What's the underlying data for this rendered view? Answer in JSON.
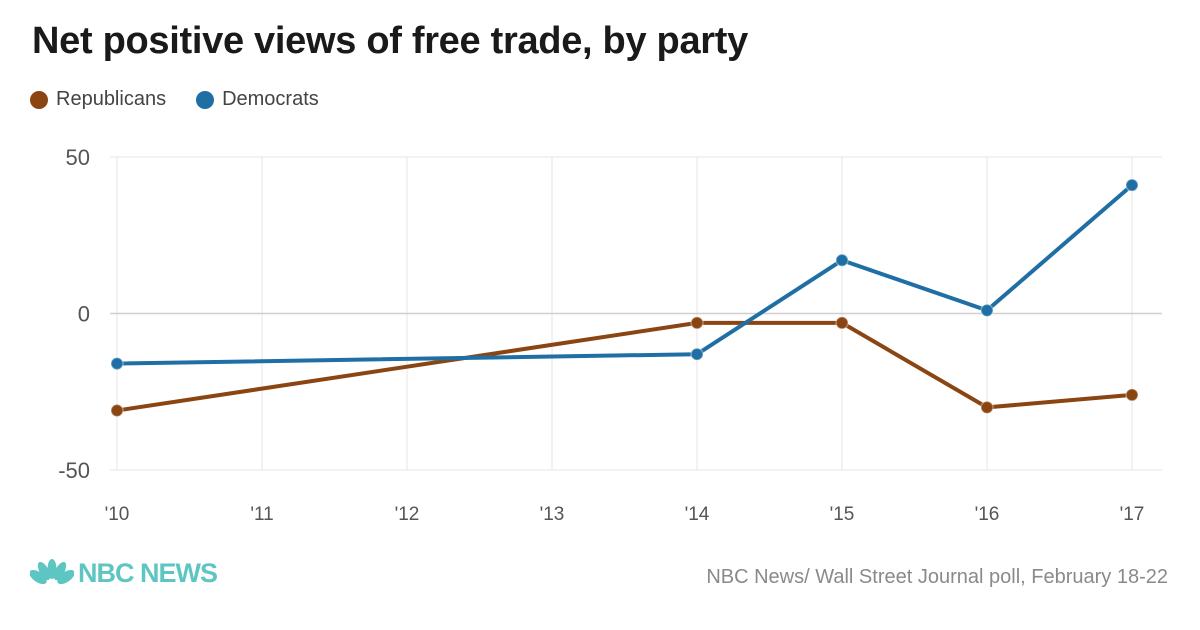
{
  "title": "Net positive views of free trade, by party",
  "legend": [
    {
      "label": "Republicans",
      "color": "#8b4513"
    },
    {
      "label": "Democrats",
      "color": "#1f6fa5"
    }
  ],
  "chart_data": {
    "type": "line",
    "title": "Net positive views of free trade, by party",
    "xlabel": "",
    "ylabel": "",
    "categories": [
      "'10",
      "'11",
      "'12",
      "'13",
      "'14",
      "'15",
      "'16",
      "'17"
    ],
    "x": [
      2010,
      2014,
      2015,
      2016,
      2017
    ],
    "ylim": [
      -50,
      50
    ],
    "yticks": [
      50,
      0,
      -50
    ],
    "ytick_labels": [
      "50",
      "0",
      "-50"
    ],
    "grid": true,
    "legend_position": "top-left",
    "series": [
      {
        "name": "Republicans",
        "color": "#8b4513",
        "x": [
          2010,
          2014,
          2015,
          2016,
          2017
        ],
        "values": [
          -31,
          -3,
          -3,
          -30,
          -26
        ]
      },
      {
        "name": "Democrats",
        "color": "#1f6fa5",
        "x": [
          2010,
          2014,
          2015,
          2016,
          2017
        ],
        "values": [
          -16,
          -13,
          17,
          1,
          41
        ]
      }
    ]
  },
  "footer": {
    "logo_text": "NBC NEWS",
    "source": "NBC News/ Wall Street Journal poll, February 18-22",
    "logo_color": "#5ec6c2"
  }
}
